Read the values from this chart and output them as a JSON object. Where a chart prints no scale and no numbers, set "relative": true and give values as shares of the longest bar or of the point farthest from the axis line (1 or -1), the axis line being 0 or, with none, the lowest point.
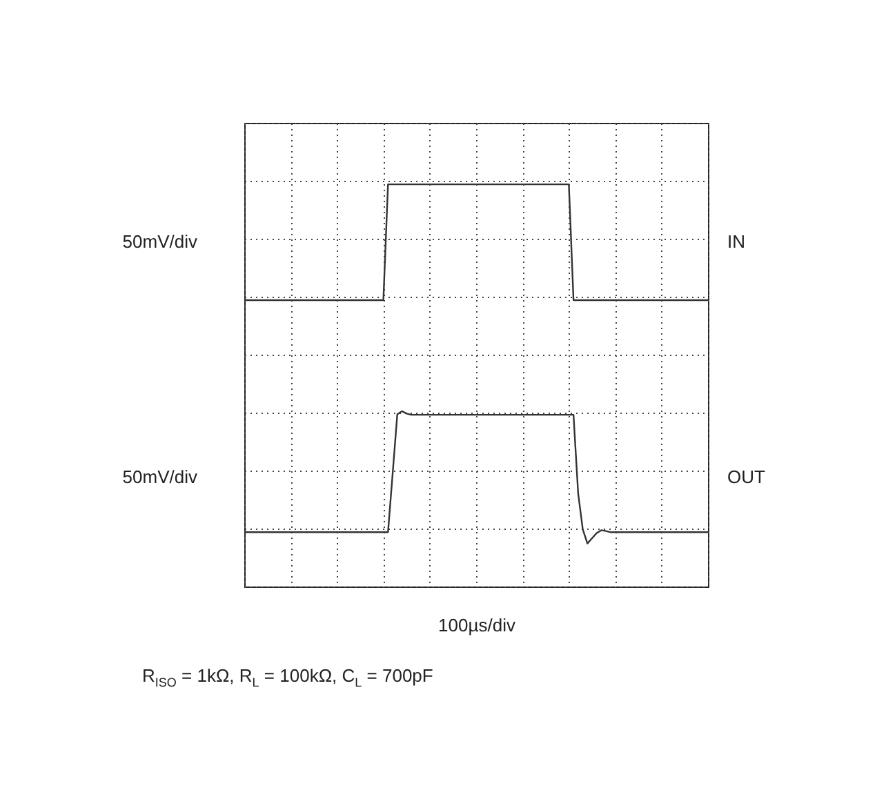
{
  "chart_data": {
    "type": "line",
    "relative": true,
    "grid": true,
    "xlabel": "100µs/div",
    "categories": [
      null,
      null,
      null,
      null,
      null,
      null,
      null,
      null,
      null,
      null,
      null,
      null,
      null,
      null,
      null,
      null,
      null,
      null,
      null,
      null,
      null,
      null,
      null,
      null,
      null,
      null,
      null,
      null,
      null,
      null,
      null,
      null,
      null,
      null,
      null,
      null,
      null,
      null,
      null,
      null,
      null,
      null,
      null,
      null,
      null,
      null,
      null,
      null,
      null,
      null,
      null,
      null,
      null,
      null,
      null,
      null,
      null,
      null,
      null,
      null,
      null,
      null,
      null,
      null,
      null,
      null,
      null,
      null,
      null,
      null,
      null,
      null,
      null,
      null,
      null,
      null,
      null,
      null,
      null,
      null,
      null,
      null,
      null,
      null,
      null,
      null,
      null,
      null,
      null,
      null,
      null,
      null,
      null,
      null,
      null,
      null,
      null,
      null,
      null,
      null,
      null
    ],
    "series": [
      {
        "name": "IN",
        "color": "#333333",
        "values": [
          0.712,
          0.712,
          0.712,
          0.712,
          0.712,
          0.712,
          0.712,
          0.712,
          0.712,
          0.712,
          0.712,
          0.712,
          0.712,
          0.712,
          0.712,
          0.712,
          0.712,
          0.712,
          0.712,
          0.712,
          0.712,
          0.712,
          0.712,
          0.712,
          0.712,
          0.712,
          0.712,
          0.712,
          0.712,
          0.712,
          0.712,
          1,
          1,
          1,
          1,
          1,
          1,
          1,
          1,
          1,
          1,
          1,
          1,
          1,
          1,
          1,
          1,
          1,
          1,
          1,
          1,
          1,
          1,
          1,
          1,
          1,
          1,
          1,
          1,
          1,
          1,
          1,
          1,
          1,
          1,
          1,
          1,
          1,
          1,
          1,
          1,
          0.712,
          0.712,
          0.712,
          0.712,
          0.712,
          0.712,
          0.712,
          0.712,
          0.712,
          0.712,
          0.712,
          0.712,
          0.712,
          0.712,
          0.712,
          0.712,
          0.712,
          0.712,
          0.712,
          0.712,
          0.712,
          0.712,
          0.712,
          0.712,
          0.712,
          0.712,
          0.712,
          0.712,
          0.712,
          0.712
        ]
      },
      {
        "name": "OUT",
        "color": "#333333",
        "values": [
          0.135,
          0.135,
          0.135,
          0.135,
          0.135,
          0.135,
          0.135,
          0.135,
          0.135,
          0.135,
          0.135,
          0.135,
          0.135,
          0.135,
          0.135,
          0.135,
          0.135,
          0.135,
          0.135,
          0.135,
          0.135,
          0.135,
          0.135,
          0.135,
          0.135,
          0.135,
          0.135,
          0.135,
          0.135,
          0.135,
          0.135,
          0.135,
          0.281,
          0.428,
          0.436,
          0.43,
          0.427,
          0.427,
          0.427,
          0.427,
          0.427,
          0.427,
          0.427,
          0.427,
          0.427,
          0.427,
          0.427,
          0.427,
          0.427,
          0.427,
          0.427,
          0.427,
          0.427,
          0.427,
          0.427,
          0.427,
          0.427,
          0.427,
          0.427,
          0.427,
          0.427,
          0.427,
          0.427,
          0.427,
          0.427,
          0.427,
          0.427,
          0.427,
          0.427,
          0.427,
          0.427,
          0.427,
          0.232,
          0.142,
          0.107,
          0.12,
          0.133,
          0.14,
          0.138,
          0.135,
          0.135,
          0.135,
          0.135,
          0.135,
          0.135,
          0.135,
          0.135,
          0.135,
          0.135,
          0.135,
          0.135,
          0.135,
          0.135,
          0.135,
          0.135,
          0.135,
          0.135,
          0.135,
          0.135,
          0.135,
          0.135
        ]
      }
    ],
    "annotations": [
      "50mV/div",
      "50mV/div",
      "R$_{ISO}$ = 1kΩ, R$_{L}$ = 100kΩ, C$_{L}$ = 700pF"
    ]
  }
}
